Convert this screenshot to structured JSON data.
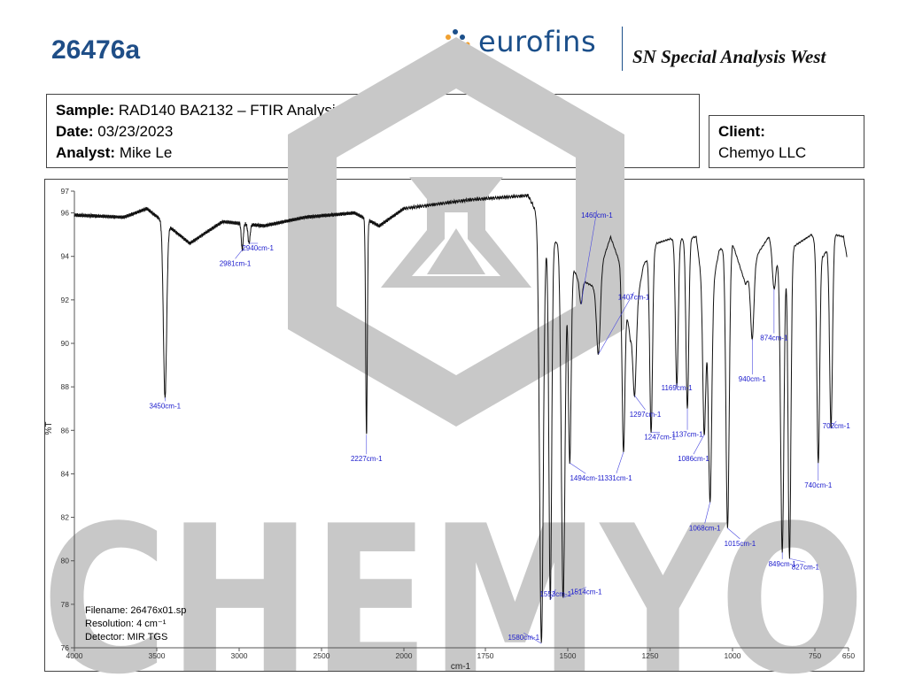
{
  "header": {
    "doc_id": "26476a",
    "logo_text": "eurofins",
    "lab_name": "SN Special Analysis West"
  },
  "sample_info": {
    "sample_label": "Sample:",
    "sample_value": "RAD140 BA2132 – FTIR Analysis",
    "date_label": "Date:",
    "date_value": "03/23/2023",
    "analyst_label": "Analyst:",
    "analyst_value": "Mike Le"
  },
  "client": {
    "label": "Client:",
    "value": "Chemyo LLC"
  },
  "watermark": {
    "text": "CHEMYO",
    "color": "#c8c8c8"
  },
  "notes": {
    "filename": "Filename: 26476x01.sp",
    "resolution": "Resolution: 4 cm⁻¹",
    "detector": "Detector: MIR TGS"
  },
  "chart_data": {
    "type": "line",
    "xlabel": "cm-1",
    "ylabel": "%T",
    "xlim": [
      4000,
      650
    ],
    "ylim": [
      76,
      97
    ],
    "x_ticks": [
      "4000",
      "3500",
      "3000",
      "2500",
      "2000",
      "1750",
      "1500",
      "1250",
      "1000",
      "750",
      "650"
    ],
    "x_tick_values": [
      4000,
      3500,
      3000,
      2500,
      2000,
      1750,
      1500,
      1250,
      1000,
      750,
      650
    ],
    "y_ticks": [
      "97",
      "96",
      "94",
      "92",
      "90",
      "88",
      "86",
      "84",
      "82",
      "80",
      "78",
      "76"
    ],
    "y_tick_values": [
      97,
      96,
      94,
      92,
      90,
      88,
      86,
      84,
      82,
      80,
      78,
      76
    ],
    "line_color": "#111111",
    "label_color": "#1a1acc",
    "peaks": [
      {
        "x": 3450,
        "y": 87.5,
        "label": "3450cm-1",
        "width": 14
      },
      {
        "x": 2981,
        "y": 94.3,
        "label": "2981cm-1",
        "width": 8
      },
      {
        "x": 2940,
        "y": 94.6,
        "label": "2940cm-1",
        "width": 9
      },
      {
        "x": 2227,
        "y": 85.8,
        "label": "2227cm-1",
        "width": 7
      },
      {
        "x": 1580,
        "y": 76.2,
        "label": "1580cm-1",
        "width": 8
      },
      {
        "x": 1553,
        "y": 78.2,
        "label": "1553cm-1",
        "width": 6
      },
      {
        "x": 1514,
        "y": 78.3,
        "label": "1514cm-1",
        "width": 8
      },
      {
        "x": 1494,
        "y": 84.5,
        "label": "1494cm-1",
        "width": 6
      },
      {
        "x": 1460,
        "y": 91.8,
        "label": "1460cm-1",
        "width": 6
      },
      {
        "x": 1407,
        "y": 89.5,
        "label": "1407cm-1",
        "width": 8
      },
      {
        "x": 1331,
        "y": 85.0,
        "label": "1331cm-1",
        "width": 6
      },
      {
        "x": 1297,
        "y": 87.6,
        "label": "1297cm-1",
        "width": 7
      },
      {
        "x": 1247,
        "y": 85.9,
        "label": "1247cm-1",
        "width": 6
      },
      {
        "x": 1169,
        "y": 88.0,
        "label": "1169cm-1",
        "width": 6
      },
      {
        "x": 1137,
        "y": 87.0,
        "label": "1137cm-1",
        "width": 6
      },
      {
        "x": 1086,
        "y": 85.8,
        "label": "1086cm-1",
        "width": 6
      },
      {
        "x": 1068,
        "y": 82.7,
        "label": "1068cm-1",
        "width": 7
      },
      {
        "x": 1015,
        "y": 81.5,
        "label": "1015cm-1",
        "width": 7
      },
      {
        "x": 940,
        "y": 90.2,
        "label": "940cm-1",
        "width": 7
      },
      {
        "x": 874,
        "y": 92.5,
        "label": "874cm-1",
        "width": 7
      },
      {
        "x": 849,
        "y": 80.4,
        "label": "849cm-1",
        "width": 7
      },
      {
        "x": 827,
        "y": 80.1,
        "label": "827cm-1",
        "width": 6
      },
      {
        "x": 740,
        "y": 84.5,
        "label": "740cm-1",
        "width": 6
      },
      {
        "x": 702,
        "y": 86.1,
        "label": "702cm-1",
        "width": 6
      }
    ],
    "baseline": [
      {
        "x": 4000,
        "y": 95.9
      },
      {
        "x": 3700,
        "y": 95.8
      },
      {
        "x": 3560,
        "y": 96.2
      },
      {
        "x": 3300,
        "y": 94.6
      },
      {
        "x": 3100,
        "y": 95.6
      },
      {
        "x": 2850,
        "y": 95.4
      },
      {
        "x": 2600,
        "y": 95.8
      },
      {
        "x": 2300,
        "y": 96.0
      },
      {
        "x": 2150,
        "y": 95.4
      },
      {
        "x": 2000,
        "y": 96.2
      },
      {
        "x": 1800,
        "y": 96.6
      },
      {
        "x": 1620,
        "y": 96.8
      },
      {
        "x": 1598,
        "y": 96.1
      },
      {
        "x": 1560,
        "y": 94.6
      },
      {
        "x": 1520,
        "y": 94.7
      },
      {
        "x": 1470,
        "y": 93.0
      },
      {
        "x": 1420,
        "y": 92.6
      },
      {
        "x": 1370,
        "y": 94.9
      },
      {
        "x": 1340,
        "y": 93.6
      },
      {
        "x": 1310,
        "y": 90.2
      },
      {
        "x": 1270,
        "y": 93.6
      },
      {
        "x": 1230,
        "y": 94.6
      },
      {
        "x": 1190,
        "y": 94.8
      },
      {
        "x": 1150,
        "y": 94.8
      },
      {
        "x": 1110,
        "y": 94.9
      },
      {
        "x": 1080,
        "y": 91.2
      },
      {
        "x": 1040,
        "y": 94.3
      },
      {
        "x": 1000,
        "y": 94.6
      },
      {
        "x": 960,
        "y": 92.7
      },
      {
        "x": 920,
        "y": 94.2
      },
      {
        "x": 890,
        "y": 94.9
      },
      {
        "x": 860,
        "y": 93.8
      },
      {
        "x": 810,
        "y": 94.5
      },
      {
        "x": 780,
        "y": 94.8
      },
      {
        "x": 760,
        "y": 95.0
      },
      {
        "x": 725,
        "y": 94.0
      },
      {
        "x": 690,
        "y": 95.0
      },
      {
        "x": 665,
        "y": 94.9
      },
      {
        "x": 655,
        "y": 94.0
      }
    ]
  }
}
